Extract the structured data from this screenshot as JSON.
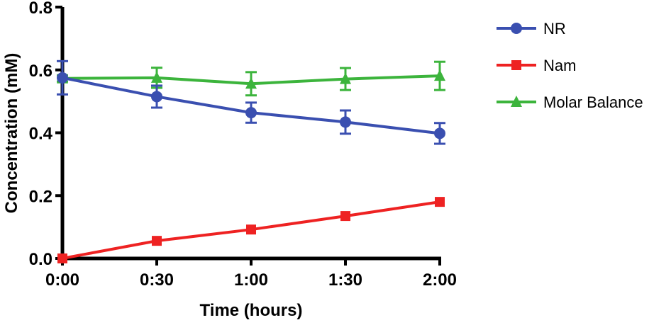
{
  "chart_data": {
    "type": "line",
    "title": "",
    "xlabel": "Time (hours)",
    "ylabel": "Concentration (mM)",
    "categories": [
      "0:00",
      "0:30",
      "1:00",
      "1:30",
      "2:00"
    ],
    "yticks": [
      "0.0",
      "0.2",
      "0.4",
      "0.6",
      "0.8"
    ],
    "ylim": [
      0,
      0.8
    ],
    "grid": false,
    "legend_position": "right",
    "series": [
      {
        "name": "NR",
        "color": "#3a4fb0",
        "marker": "circle",
        "values": [
          0.575,
          0.515,
          0.464,
          0.434,
          0.398
        ],
        "errors": [
          0.053,
          0.035,
          0.032,
          0.037,
          0.033
        ]
      },
      {
        "name": "Nam",
        "color": "#ee2222",
        "marker": "square",
        "values": [
          0.0,
          0.056,
          0.092,
          0.135,
          0.18
        ],
        "errors": [
          0,
          0,
          0,
          0,
          0
        ]
      },
      {
        "name": "Molar Balance",
        "color": "#3cb43c",
        "marker": "triangle",
        "values": [
          0.573,
          0.575,
          0.556,
          0.571,
          0.581
        ],
        "errors": [
          0.01,
          0.032,
          0.037,
          0.035,
          0.045
        ]
      }
    ]
  }
}
